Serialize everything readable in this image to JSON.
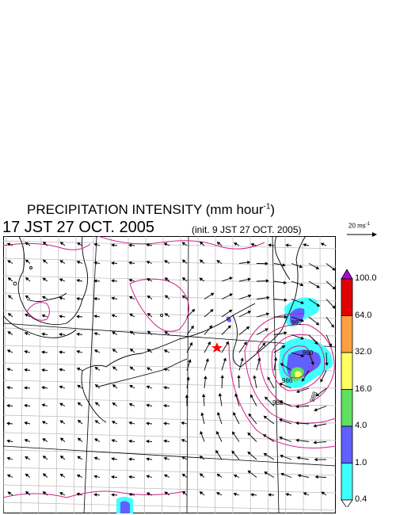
{
  "title": {
    "main": "PRECIPITATION INTENSITY (mm hour",
    "sup": "-1",
    "close": ")"
  },
  "timestamp": "17 JST 27 OCT. 2005",
  "init": "(init. 9 JST 27 OCT. 2005)",
  "reference_vector": {
    "label": "20 ms",
    "sup": "-1"
  },
  "colorbar": {
    "levels": [
      "100.0",
      "64.0",
      "32.0",
      "16.0",
      "4.0",
      "1.0",
      "0.4"
    ],
    "colors": [
      "#b000e0",
      "#e00000",
      "#ffa040",
      "#ffff60",
      "#60e060",
      "#6060ff",
      "#40ffff",
      "#ffffff"
    ]
  },
  "colors": {
    "coast": "#000000",
    "pressure_contour": "#d0208a",
    "grid": "#b8b8b8",
    "marker": "#ff0000"
  },
  "contour_labels": [
    {
      "text": "992"
    },
    {
      "text": "990"
    },
    {
      "text": "986"
    },
    {
      "text": "988"
    },
    {
      "text": "988"
    }
  ],
  "marker": {
    "icon": "star-icon"
  }
}
